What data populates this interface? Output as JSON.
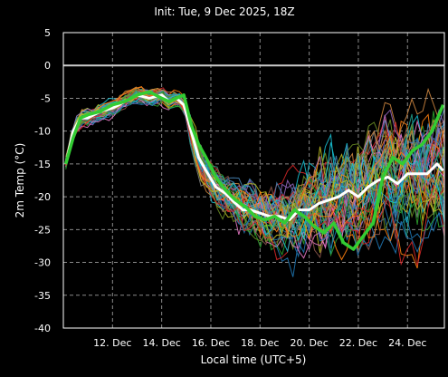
{
  "chart_data": {
    "type": "line",
    "title": "Init: Tue, 9 Dec 2025, 18Z",
    "xlabel": "Local time (UTC+5)",
    "ylabel": "2m Temp (°C)",
    "ylim": [
      -40,
      5
    ],
    "yticks": [
      5,
      0,
      -5,
      -10,
      -15,
      -20,
      -25,
      -30,
      -35,
      -40
    ],
    "xlim": [
      10.0,
      25.5
    ],
    "xticks": [
      {
        "x": 12,
        "label": "12. Dec"
      },
      {
        "x": 14,
        "label": "14. Dec"
      },
      {
        "x": 16,
        "label": "16. Dec"
      },
      {
        "x": 18,
        "label": "18. Dec"
      },
      {
        "x": 20,
        "label": "20. Dec"
      },
      {
        "x": 22,
        "label": "22. Dec"
      },
      {
        "x": 24,
        "label": "24. Dec"
      }
    ],
    "grid": true,
    "reference_line": {
      "y": 0,
      "color": "#cccccc"
    },
    "ensemble_colors": [
      "#1f77b4",
      "#2ca02c",
      "#d62728",
      "#ff7f0e",
      "#17becf",
      "#bcbd22",
      "#9467bd",
      "#e377c2",
      "#8c564b",
      "#7f7f7f",
      "#1fa08a",
      "#6b8e23",
      "#4682b4",
      "#cd853f"
    ],
    "mean_series": {
      "color": "#ffffff",
      "x": [
        10.1,
        10.4,
        10.7,
        11.0,
        11.5,
        12.0,
        12.5,
        13.0,
        13.5,
        14.0,
        14.3,
        14.6,
        14.9,
        15.2,
        15.5,
        15.8,
        16.2,
        16.6,
        17.0,
        17.3,
        17.6,
        18.0,
        18.4,
        18.8,
        19.2,
        19.6,
        20.0,
        20.4,
        20.8,
        21.2,
        21.6,
        22.0,
        22.4,
        22.8,
        23.2,
        23.6,
        24.0,
        24.4,
        24.8,
        25.2,
        25.45
      ],
      "y": [
        -15,
        -10,
        -8,
        -8,
        -7,
        -6.5,
        -5.5,
        -4.5,
        -5,
        -4.5,
        -5.5,
        -5,
        -6,
        -10,
        -14,
        -16,
        -18.5,
        -19.5,
        -21,
        -22,
        -22,
        -22.5,
        -23,
        -23,
        -23.5,
        -22,
        -22,
        -21,
        -20.5,
        -20,
        -19,
        -20,
        -18.5,
        -17.5,
        -17,
        -18,
        -16.5,
        -16.5,
        -16.5,
        -15,
        -16
      ]
    },
    "highlight_series": {
      "color": "#33cc33",
      "x": [
        10.1,
        10.4,
        10.7,
        11.0,
        11.5,
        12.0,
        12.5,
        13.0,
        13.5,
        14.0,
        14.3,
        14.6,
        14.9,
        15.2,
        15.5,
        15.8,
        16.2,
        16.6,
        17.0,
        17.4,
        17.8,
        18.2,
        18.6,
        19.0,
        19.4,
        19.8,
        20.2,
        20.6,
        21.0,
        21.4,
        21.8,
        22.2,
        22.6,
        23.0,
        23.4,
        23.8,
        24.2,
        24.6,
        25.0,
        25.45
      ],
      "y": [
        -15,
        -11,
        -8,
        -7.5,
        -7,
        -6,
        -5.5,
        -4.5,
        -4,
        -5,
        -5.5,
        -5,
        -4.5,
        -9,
        -12,
        -14,
        -17,
        -19,
        -20.5,
        -21.5,
        -23,
        -23.5,
        -23,
        -24,
        -22,
        -23,
        -24.5,
        -25.5,
        -24,
        -27,
        -28,
        -26,
        -24,
        -17,
        -14,
        -15,
        -13,
        -12,
        -10,
        -6
      ]
    }
  }
}
